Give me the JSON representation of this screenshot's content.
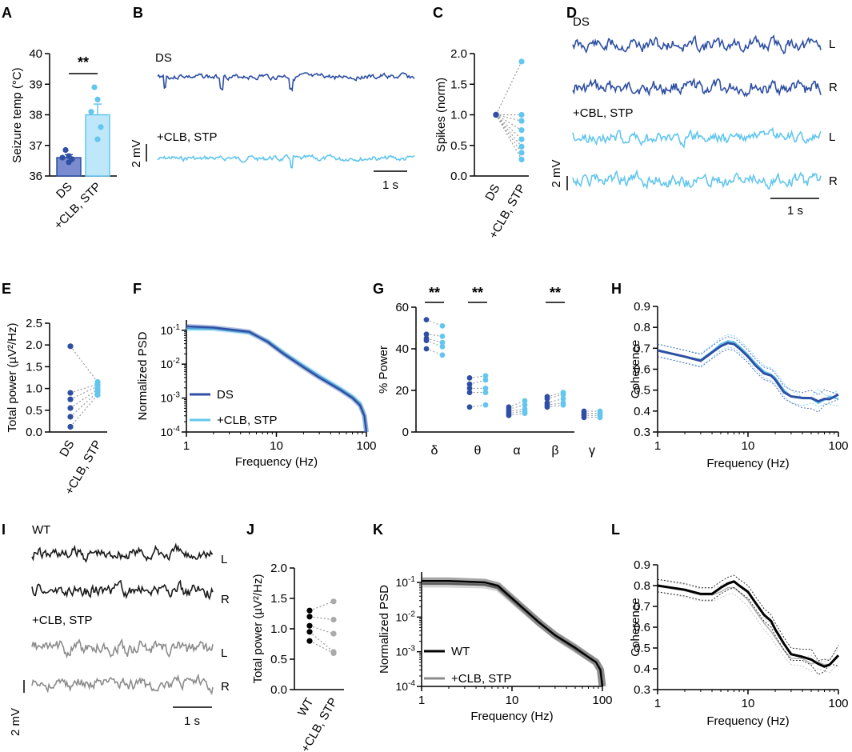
{
  "colors": {
    "ds": "#2E4FA3",
    "treated": "#62C6EE",
    "wt": "#1a1a1a",
    "wt_treated": "#8c8c8c",
    "pair_line": "#9a9a9a"
  },
  "panel_letters": [
    "A",
    "B",
    "C",
    "D",
    "E",
    "F",
    "G",
    "H",
    "I",
    "J",
    "K",
    "L"
  ],
  "chart_data": [
    {
      "panel": "A",
      "type": "bar",
      "ylabel": "Seizure temp (°C)",
      "ylim": [
        36,
        40
      ],
      "yticks": [
        "36",
        "37",
        "38",
        "39",
        "40"
      ],
      "ytick_values": [
        36,
        37,
        38,
        39,
        40
      ],
      "categories": [
        "DS",
        "+CLB, STP"
      ],
      "values": [
        36.6,
        38.0
      ],
      "sem": [
        0.1,
        0.35
      ],
      "points": [
        [
          36.45,
          36.55,
          36.6,
          36.65,
          36.85
        ],
        [
          37.2,
          37.6,
          38.1,
          38.5,
          38.9
        ]
      ],
      "significance": "**"
    },
    {
      "panel": "B",
      "type": "traces",
      "labels": {
        "top": "DS",
        "bottom": "+CLB, STP"
      },
      "scale": {
        "y": "2 mV",
        "x": "1 s"
      }
    },
    {
      "panel": "C",
      "type": "paired_scatter",
      "ylabel": "Spikes (norm)",
      "ylim": [
        0,
        2.0
      ],
      "yticks": [
        "0.0",
        "0.5",
        "1.0",
        "1.5",
        "2.0"
      ],
      "ytick_values": [
        0,
        0.5,
        1,
        1.5,
        2
      ],
      "categories": [
        "DS",
        "+CLB, STP"
      ],
      "before": [
        1,
        1,
        1,
        1,
        1,
        1,
        1,
        1
      ],
      "after": [
        1.87,
        1.0,
        0.9,
        0.75,
        0.6,
        0.48,
        0.38,
        0.27
      ]
    },
    {
      "panel": "D",
      "type": "traces",
      "labels": {
        "top": "DS",
        "bottom": "+CBL, STP",
        "left": "L",
        "right": "R"
      },
      "scale": {
        "y": "2 mV",
        "x": "1 s"
      }
    },
    {
      "panel": "E",
      "type": "paired_scatter",
      "ylabel": "Total power  (µV²/Hz)",
      "ylim": [
        0,
        2.5
      ],
      "yticks": [
        "0.0",
        "0.5",
        "1.0",
        "1.5",
        "2.0",
        "2.5"
      ],
      "ytick_values": [
        0,
        0.5,
        1,
        1.5,
        2,
        2.5
      ],
      "categories": [
        "DS",
        "+CLB, STP"
      ],
      "before": [
        1.97,
        0.9,
        0.75,
        0.55,
        0.35,
        0.12
      ],
      "after": [
        1.15,
        1.1,
        1.05,
        0.98,
        0.92,
        0.85
      ]
    },
    {
      "panel": "F",
      "type": "line_loglog",
      "xlabel": "Frequency (Hz)",
      "ylabel": "Normalized PSD",
      "xlim": [
        1,
        100
      ],
      "ylim": [
        0.0001,
        0.2
      ],
      "xticks": [
        "1",
        "10",
        "100"
      ],
      "yticks": [
        {
          "base": "10",
          "exp": "-1",
          "v": 0.1
        },
        {
          "base": "10",
          "exp": "-2",
          "v": 0.01
        },
        {
          "base": "10",
          "exp": "-3",
          "v": 0.001
        },
        {
          "base": "10",
          "exp": "-4",
          "v": 0.0001
        }
      ],
      "x": [
        1,
        2,
        5,
        8,
        12,
        20,
        30,
        50,
        70,
        85,
        95,
        100
      ],
      "series": [
        {
          "name": "DS",
          "values": [
            0.13,
            0.12,
            0.09,
            0.045,
            0.02,
            0.008,
            0.004,
            0.0018,
            0.001,
            0.0006,
            0.0003,
            0.0001
          ]
        },
        {
          "name": "+CLB, STP",
          "values": [
            0.11,
            0.11,
            0.085,
            0.048,
            0.022,
            0.009,
            0.0045,
            0.002,
            0.0011,
            0.0007,
            0.0003,
            0.0001
          ]
        }
      ]
    },
    {
      "panel": "G",
      "type": "paired_scatter_groups",
      "ylabel": "% Power",
      "ylim": [
        0,
        60
      ],
      "yticks": [
        "0",
        "20",
        "40",
        "60"
      ],
      "ytick_values": [
        0,
        20,
        40,
        60
      ],
      "categories": [
        "δ",
        "θ",
        "α",
        "β",
        "γ"
      ],
      "significance": [
        "**",
        "**",
        "",
        "**",
        ""
      ],
      "groups": [
        {
          "before": [
            54,
            47,
            45,
            44,
            40
          ],
          "after": [
            51,
            46,
            43,
            41,
            37
          ]
        },
        {
          "before": [
            26,
            23,
            21,
            19,
            12
          ],
          "after": [
            27,
            25,
            21,
            19,
            13
          ]
        },
        {
          "before": [
            12,
            11,
            10,
            9,
            8
          ],
          "after": [
            15,
            13,
            11,
            10,
            9
          ]
        },
        {
          "before": [
            17,
            16,
            14,
            13,
            12
          ],
          "after": [
            19,
            18,
            16,
            14,
            13
          ]
        },
        {
          "before": [
            10,
            9,
            8,
            7
          ],
          "after": [
            10,
            9,
            8,
            7
          ]
        }
      ]
    },
    {
      "panel": "H",
      "type": "line_semilogx",
      "xlabel": "Frequency (Hz)",
      "ylabel": "Coherence",
      "xlim": [
        1,
        100
      ],
      "ylim": [
        0.3,
        0.9
      ],
      "xticks": [
        "1",
        "10",
        "100"
      ],
      "yticks": [
        "0.3",
        "0.4",
        "0.5",
        "0.6",
        "0.7",
        "0.8",
        "0.9"
      ],
      "ytick_values": [
        0.3,
        0.4,
        0.5,
        0.6,
        0.7,
        0.8,
        0.9
      ],
      "x": [
        1,
        2,
        3,
        4,
        5,
        6,
        7,
        8,
        10,
        12,
        15,
        18,
        20,
        25,
        30,
        40,
        50,
        60,
        70,
        80,
        100
      ],
      "series": [
        {
          "name": "DS",
          "values": [
            0.69,
            0.66,
            0.64,
            0.68,
            0.71,
            0.725,
            0.72,
            0.7,
            0.66,
            0.62,
            0.58,
            0.57,
            0.55,
            0.49,
            0.47,
            0.46,
            0.45,
            0.44,
            0.45,
            0.45,
            0.47
          ]
        },
        {
          "name": "+CLB, STP",
          "values": [
            0.69,
            0.66,
            0.645,
            0.685,
            0.72,
            0.735,
            0.73,
            0.71,
            0.67,
            0.63,
            0.59,
            0.575,
            0.56,
            0.5,
            0.47,
            0.46,
            0.45,
            0.45,
            0.45,
            0.46,
            0.46
          ]
        }
      ]
    },
    {
      "panel": "I",
      "type": "traces",
      "labels": {
        "top": "WT",
        "bottom": "+CLB, STP",
        "left": "L",
        "right": "R"
      },
      "scale": {
        "y": "2 mV",
        "x": "1 s"
      }
    },
    {
      "panel": "J",
      "type": "paired_scatter",
      "ylabel": "Total power  (µV²/Hz)",
      "ylim": [
        0,
        2.0
      ],
      "yticks": [
        "0.0",
        "0.5",
        "1.0",
        "1.5",
        "2.0"
      ],
      "ytick_values": [
        0,
        0.5,
        1,
        1.5,
        2
      ],
      "categories": [
        "WT",
        "+CLB, STP"
      ],
      "before": [
        1.3,
        1.2,
        1.05,
        0.95,
        0.8
      ],
      "after": [
        1.45,
        1.15,
        0.92,
        0.62,
        0.6
      ]
    },
    {
      "panel": "K",
      "type": "line_loglog",
      "xlabel": "Frequency (Hz)",
      "ylabel": "Normalized PSD",
      "xlim": [
        1,
        100
      ],
      "ylim": [
        0.0001,
        0.2
      ],
      "xticks": [
        "1",
        "10",
        "100"
      ],
      "yticks": [
        {
          "base": "10",
          "exp": "-1",
          "v": 0.1
        },
        {
          "base": "10",
          "exp": "-2",
          "v": 0.01
        },
        {
          "base": "10",
          "exp": "-3",
          "v": 0.001
        },
        {
          "base": "10",
          "exp": "-4",
          "v": 0.0001
        }
      ],
      "x": [
        1,
        2,
        5,
        7,
        10,
        20,
        30,
        50,
        70,
        85,
        95,
        100
      ],
      "series": [
        {
          "name": "WT",
          "values": [
            0.11,
            0.11,
            0.1,
            0.08,
            0.035,
            0.007,
            0.003,
            0.0013,
            0.0007,
            0.0005,
            0.0003,
            0.0001
          ]
        },
        {
          "name": "+CLB, STP",
          "values": [
            0.09,
            0.09,
            0.085,
            0.07,
            0.032,
            0.0068,
            0.0029,
            0.0012,
            0.0007,
            0.0005,
            0.0003,
            0.0001
          ]
        }
      ]
    },
    {
      "panel": "L",
      "type": "line_semilogx",
      "xlabel": "Frequency (Hz)",
      "ylabel": "Coherence",
      "xlim": [
        1,
        100
      ],
      "ylim": [
        0.3,
        0.9
      ],
      "xticks": [
        "1",
        "10",
        "100"
      ],
      "yticks": [
        "0.3",
        "0.4",
        "0.5",
        "0.6",
        "0.7",
        "0.8",
        "0.9"
      ],
      "ytick_values": [
        0.3,
        0.4,
        0.5,
        0.6,
        0.7,
        0.8,
        0.9
      ],
      "x": [
        1,
        2,
        3,
        4,
        5,
        6,
        7,
        8,
        10,
        12,
        15,
        18,
        20,
        25,
        30,
        40,
        50,
        60,
        70,
        80,
        100
      ],
      "series": [
        {
          "name": "WT",
          "values": [
            0.8,
            0.78,
            0.76,
            0.76,
            0.79,
            0.81,
            0.82,
            0.8,
            0.77,
            0.72,
            0.66,
            0.63,
            0.59,
            0.52,
            0.47,
            0.45,
            0.44,
            0.42,
            0.42,
            0.43,
            0.46
          ]
        },
        {
          "name": "+CLB, STP",
          "values": [
            0.8,
            0.775,
            0.755,
            0.755,
            0.77,
            0.79,
            0.79,
            0.77,
            0.73,
            0.68,
            0.62,
            0.58,
            0.55,
            0.49,
            0.45,
            0.44,
            0.43,
            0.42,
            0.41,
            0.42,
            0.45
          ]
        }
      ]
    }
  ]
}
